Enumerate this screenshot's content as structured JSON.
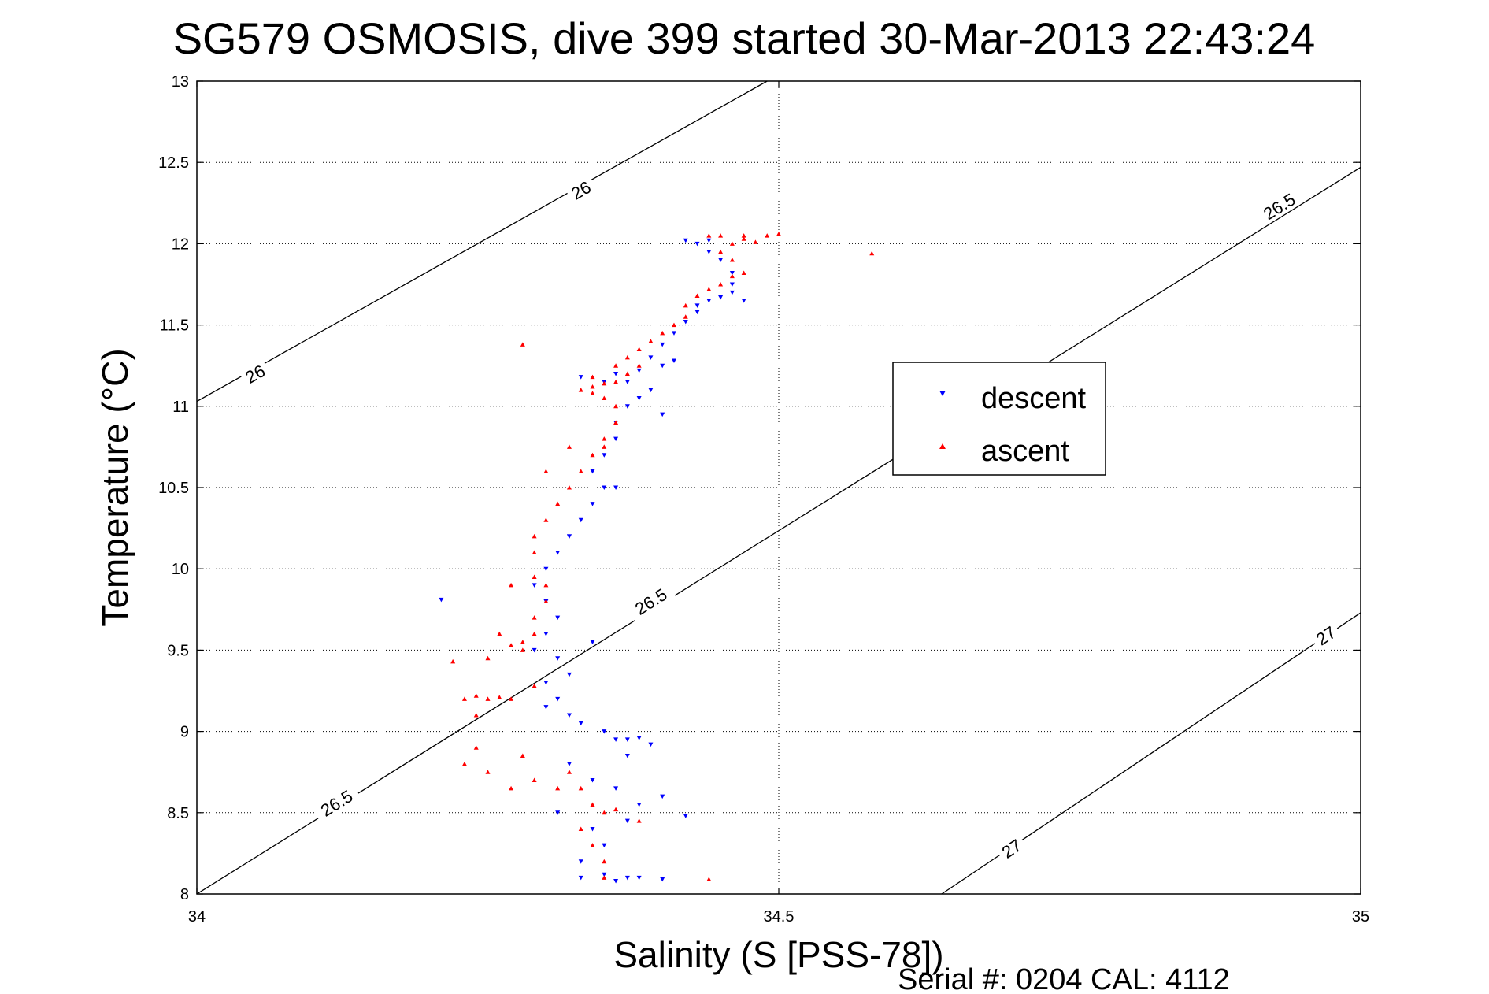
{
  "chart_data": {
    "type": "scatter",
    "title": "SG579 OSMOSIS, dive 399 started 30-Mar-2013 22:43:24",
    "xlabel": "Salinity (S [PSS-78])",
    "ylabel": "Temperature (°C)",
    "footer": "Serial #: 0204  CAL: 4112",
    "xlim": [
      34,
      35
    ],
    "ylim": [
      8,
      13
    ],
    "x_ticks": [
      "34",
      "34.5",
      "35"
    ],
    "y_ticks": [
      "8",
      "8.5",
      "9",
      "9.5",
      "10",
      "10.5",
      "11",
      "11.5",
      "12",
      "12.5",
      "13"
    ],
    "grid": true,
    "legend_position": "center-right",
    "contours": [
      {
        "label": "26",
        "points": [
          [
            34,
            11.03
          ],
          [
            34.49,
            13.0
          ]
        ],
        "label_positions": [
          [
            34.05,
            11.2
          ],
          [
            34.33,
            12.33
          ]
        ]
      },
      {
        "label": "26.5",
        "points": [
          [
            34.0,
            8.0
          ],
          [
            35.0,
            12.47
          ]
        ],
        "label_positions": [
          [
            34.12,
            8.56
          ],
          [
            34.39,
            9.8
          ],
          [
            34.93,
            12.23
          ]
        ]
      },
      {
        "label": "27",
        "points": [
          [
            34.64,
            8.0
          ],
          [
            35.0,
            9.73
          ]
        ],
        "label_positions": [
          [
            34.7,
            8.28
          ],
          [
            34.97,
            9.59
          ]
        ]
      }
    ],
    "series": [
      {
        "name": "descent",
        "marker": "triangle-down",
        "color": "#0000ff",
        "points": [
          [
            34.21,
            9.81
          ],
          [
            34.33,
            8.1
          ],
          [
            34.35,
            8.12
          ],
          [
            34.36,
            8.08
          ],
          [
            34.37,
            8.1
          ],
          [
            34.38,
            8.1
          ],
          [
            34.4,
            8.09
          ],
          [
            34.33,
            8.2
          ],
          [
            34.35,
            8.3
          ],
          [
            34.34,
            8.4
          ],
          [
            34.31,
            8.5
          ],
          [
            34.37,
            8.45
          ],
          [
            34.38,
            8.55
          ],
          [
            34.42,
            8.48
          ],
          [
            34.4,
            8.6
          ],
          [
            34.36,
            8.65
          ],
          [
            34.34,
            8.7
          ],
          [
            34.32,
            8.8
          ],
          [
            34.37,
            8.85
          ],
          [
            34.39,
            8.92
          ],
          [
            34.36,
            8.95
          ],
          [
            34.37,
            8.95
          ],
          [
            34.38,
            8.96
          ],
          [
            34.35,
            9.0
          ],
          [
            34.33,
            9.05
          ],
          [
            34.32,
            9.1
          ],
          [
            34.3,
            9.15
          ],
          [
            34.31,
            9.2
          ],
          [
            34.3,
            9.3
          ],
          [
            34.32,
            9.35
          ],
          [
            34.31,
            9.45
          ],
          [
            34.29,
            9.5
          ],
          [
            34.3,
            9.6
          ],
          [
            34.31,
            9.7
          ],
          [
            34.3,
            9.8
          ],
          [
            34.29,
            9.9
          ],
          [
            34.3,
            10.0
          ],
          [
            34.31,
            10.1
          ],
          [
            34.32,
            10.2
          ],
          [
            34.33,
            10.3
          ],
          [
            34.34,
            10.4
          ],
          [
            34.35,
            10.5
          ],
          [
            34.34,
            10.6
          ],
          [
            34.35,
            10.7
          ],
          [
            34.36,
            10.8
          ],
          [
            34.36,
            10.9
          ],
          [
            34.37,
            11.0
          ],
          [
            34.38,
            11.05
          ],
          [
            34.39,
            11.1
          ],
          [
            34.37,
            11.15
          ],
          [
            34.35,
            11.15
          ],
          [
            34.36,
            11.2
          ],
          [
            34.38,
            11.22
          ],
          [
            34.4,
            11.25
          ],
          [
            34.41,
            11.28
          ],
          [
            34.39,
            11.3
          ],
          [
            34.4,
            11.38
          ],
          [
            34.41,
            11.45
          ],
          [
            34.42,
            11.52
          ],
          [
            34.43,
            11.58
          ],
          [
            34.43,
            11.62
          ],
          [
            34.44,
            11.65
          ],
          [
            34.45,
            11.67
          ],
          [
            34.46,
            11.7
          ],
          [
            34.46,
            11.75
          ],
          [
            34.46,
            11.82
          ],
          [
            34.45,
            11.9
          ],
          [
            34.44,
            11.95
          ],
          [
            34.43,
            12.0
          ],
          [
            34.44,
            12.02
          ],
          [
            34.42,
            12.02
          ],
          [
            34.47,
            11.65
          ],
          [
            34.33,
            11.18
          ],
          [
            34.4,
            10.95
          ],
          [
            34.36,
            10.5
          ],
          [
            34.32,
            10.2
          ],
          [
            34.34,
            9.55
          ]
        ]
      },
      {
        "name": "ascent",
        "marker": "triangle-up",
        "color": "#ff0000",
        "points": [
          [
            34.28,
            11.38
          ],
          [
            34.58,
            11.94
          ],
          [
            34.22,
            9.43
          ],
          [
            34.25,
            9.45
          ],
          [
            34.23,
            9.2
          ],
          [
            34.24,
            9.22
          ],
          [
            34.25,
            9.2
          ],
          [
            34.26,
            9.21
          ],
          [
            34.27,
            9.2
          ],
          [
            34.24,
            9.1
          ],
          [
            34.24,
            8.9
          ],
          [
            34.23,
            8.8
          ],
          [
            34.25,
            8.75
          ],
          [
            34.27,
            8.65
          ],
          [
            34.29,
            8.7
          ],
          [
            34.28,
            8.85
          ],
          [
            34.32,
            8.75
          ],
          [
            34.33,
            8.65
          ],
          [
            34.34,
            8.55
          ],
          [
            34.35,
            8.5
          ],
          [
            34.36,
            8.52
          ],
          [
            34.33,
            8.4
          ],
          [
            34.34,
            8.3
          ],
          [
            34.35,
            8.2
          ],
          [
            34.35,
            8.1
          ],
          [
            34.44,
            8.09
          ],
          [
            34.29,
            9.28
          ],
          [
            34.28,
            9.5
          ],
          [
            34.27,
            9.53
          ],
          [
            34.28,
            9.55
          ],
          [
            34.29,
            9.6
          ],
          [
            34.29,
            9.7
          ],
          [
            34.3,
            9.8
          ],
          [
            34.3,
            9.9
          ],
          [
            34.29,
            9.95
          ],
          [
            34.29,
            10.1
          ],
          [
            34.29,
            10.2
          ],
          [
            34.3,
            10.3
          ],
          [
            34.31,
            10.4
          ],
          [
            34.32,
            10.5
          ],
          [
            34.33,
            10.6
          ],
          [
            34.34,
            10.7
          ],
          [
            34.35,
            10.75
          ],
          [
            34.35,
            10.8
          ],
          [
            34.36,
            10.9
          ],
          [
            34.36,
            11.0
          ],
          [
            34.35,
            11.05
          ],
          [
            34.34,
            11.08
          ],
          [
            34.33,
            11.1
          ],
          [
            34.34,
            11.12
          ],
          [
            34.35,
            11.14
          ],
          [
            34.36,
            11.15
          ],
          [
            34.37,
            11.2
          ],
          [
            34.38,
            11.25
          ],
          [
            34.37,
            11.3
          ],
          [
            34.38,
            11.35
          ],
          [
            34.39,
            11.4
          ],
          [
            34.4,
            11.45
          ],
          [
            34.41,
            11.5
          ],
          [
            34.42,
            11.55
          ],
          [
            34.42,
            11.62
          ],
          [
            34.43,
            11.68
          ],
          [
            34.44,
            11.72
          ],
          [
            34.45,
            11.75
          ],
          [
            34.46,
            11.8
          ],
          [
            34.47,
            11.82
          ],
          [
            34.46,
            11.9
          ],
          [
            34.45,
            11.95
          ],
          [
            34.46,
            12.0
          ],
          [
            34.44,
            12.05
          ],
          [
            34.45,
            12.05
          ],
          [
            34.47,
            12.05
          ],
          [
            34.49,
            12.05
          ],
          [
            34.5,
            12.06
          ],
          [
            34.47,
            12.03
          ],
          [
            34.48,
            12.01
          ],
          [
            34.34,
            11.18
          ],
          [
            34.36,
            11.25
          ],
          [
            34.32,
            10.75
          ],
          [
            34.3,
            10.6
          ],
          [
            34.27,
            9.9
          ],
          [
            34.26,
            9.6
          ],
          [
            34.31,
            8.65
          ],
          [
            34.38,
            8.45
          ]
        ]
      }
    ]
  }
}
